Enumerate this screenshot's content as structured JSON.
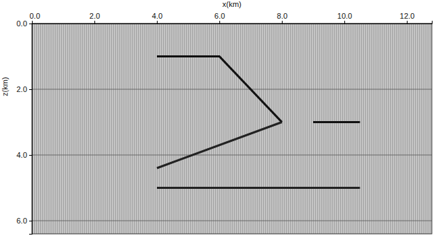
{
  "chart_data": {
    "type": "line",
    "x_label": "x(km)",
    "y_label": "z(km)",
    "xlim": [
      0,
      12.8
    ],
    "ylim": [
      0,
      6.4
    ],
    "xticks": [
      {
        "value": 0,
        "label": "0.0"
      },
      {
        "value": 2,
        "label": "2.0"
      },
      {
        "value": 4,
        "label": "4.0"
      },
      {
        "value": 6,
        "label": "6.0"
      },
      {
        "value": 8,
        "label": "8.0"
      },
      {
        "value": 10,
        "label": "10.0"
      },
      {
        "value": 12,
        "label": "12.0"
      }
    ],
    "yticks": [
      {
        "value": 0,
        "label": "0.0"
      },
      {
        "value": 2,
        "label": "2.0"
      },
      {
        "value": 4,
        "label": "4.0"
      },
      {
        "value": 6,
        "label": "6.0"
      }
    ],
    "grid": true,
    "series": [
      {
        "color": "#111111",
        "x": [
          4.0,
          6.0,
          8.0
        ],
        "values": [
          1.0,
          1.0,
          3.0
        ]
      },
      {
        "color": "#222222",
        "x": [
          4.0,
          8.0
        ],
        "values": [
          4.4,
          3.0
        ]
      },
      {
        "color": "#111111",
        "x": [
          9.0,
          10.5
        ],
        "values": [
          3.0,
          3.0
        ]
      },
      {
        "color": "#222222",
        "x": [
          4.0,
          10.5
        ],
        "values": [
          5.0,
          5.0
        ]
      }
    ]
  }
}
